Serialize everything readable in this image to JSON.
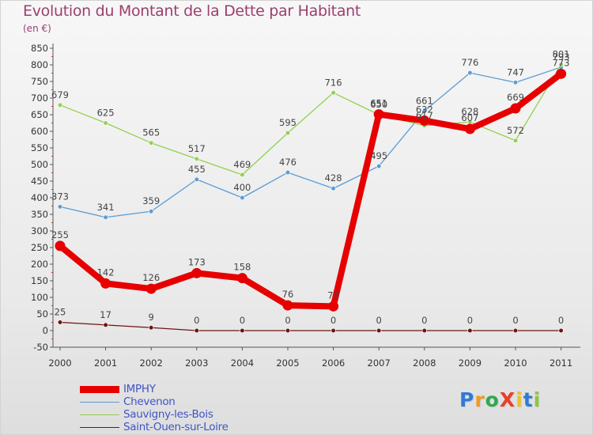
{
  "title": "Evolution du Montant de la Dette par Habitant",
  "unit_label": "(en €)",
  "logo": {
    "text": "ProXiti",
    "colors": [
      "#2f7bd4",
      "#f19a1e",
      "#2fa84f",
      "#e8402a",
      "#f1c21e",
      "#2f7bd4",
      "#8fc73e"
    ]
  },
  "chart_data": {
    "type": "line",
    "x": [
      "2000",
      "2001",
      "2002",
      "2003",
      "2004",
      "2005",
      "2006",
      "2007",
      "2008",
      "2009",
      "2010",
      "2011"
    ],
    "y_ticks": [
      "-50",
      "0",
      "50",
      "100",
      "150",
      "200",
      "250",
      "300",
      "350",
      "400",
      "450",
      "500",
      "550",
      "600",
      "650",
      "700",
      "750",
      "800",
      "850"
    ],
    "ylim": [
      -50,
      850
    ],
    "grid": false,
    "legend_position": "bottom-left",
    "series": [
      {
        "name": "Saint-Ouen-sur-Loire",
        "color": "#6e1414",
        "values": [
          25,
          17,
          9,
          0,
          0,
          0,
          0,
          0,
          0,
          0,
          0,
          0
        ],
        "labels": [
          "25",
          "17",
          "9",
          "0",
          "0",
          "0",
          "0",
          "0",
          "0",
          "0",
          "0",
          "0"
        ]
      },
      {
        "name": "Chevenon",
        "color": "#5b9bd5",
        "values": [
          373,
          341,
          359,
          455,
          400,
          476,
          428,
          495,
          661,
          776,
          747,
          793
        ],
        "labels": [
          "373",
          "341",
          "359",
          "455",
          "400",
          "476",
          "428",
          "495",
          "661",
          "776",
          "747",
          "793"
        ]
      },
      {
        "name": "Sauvigny-les-Bois",
        "color": "#92d050",
        "values": [
          679,
          625,
          565,
          517,
          469,
          595,
          716,
          650,
          617,
          628,
          572,
          801
        ],
        "labels": [
          "679",
          "625",
          "565",
          "517",
          "469",
          "595",
          "716",
          "650",
          "617",
          "628",
          "572",
          "801"
        ]
      },
      {
        "name": "IMPHY",
        "color": "#e60000",
        "values": [
          255,
          142,
          126,
          173,
          158,
          76,
          73,
          651,
          632,
          607,
          669,
          773
        ],
        "labels": [
          "255",
          "142",
          "126",
          "173",
          "158",
          "76",
          "73",
          "651",
          "632",
          "607",
          "669",
          "773"
        ]
      }
    ],
    "legend": [
      "IMPHY",
      "Chevenon",
      "Sauvigny-les-Bois",
      "Saint-Ouen-sur-Loire"
    ]
  }
}
